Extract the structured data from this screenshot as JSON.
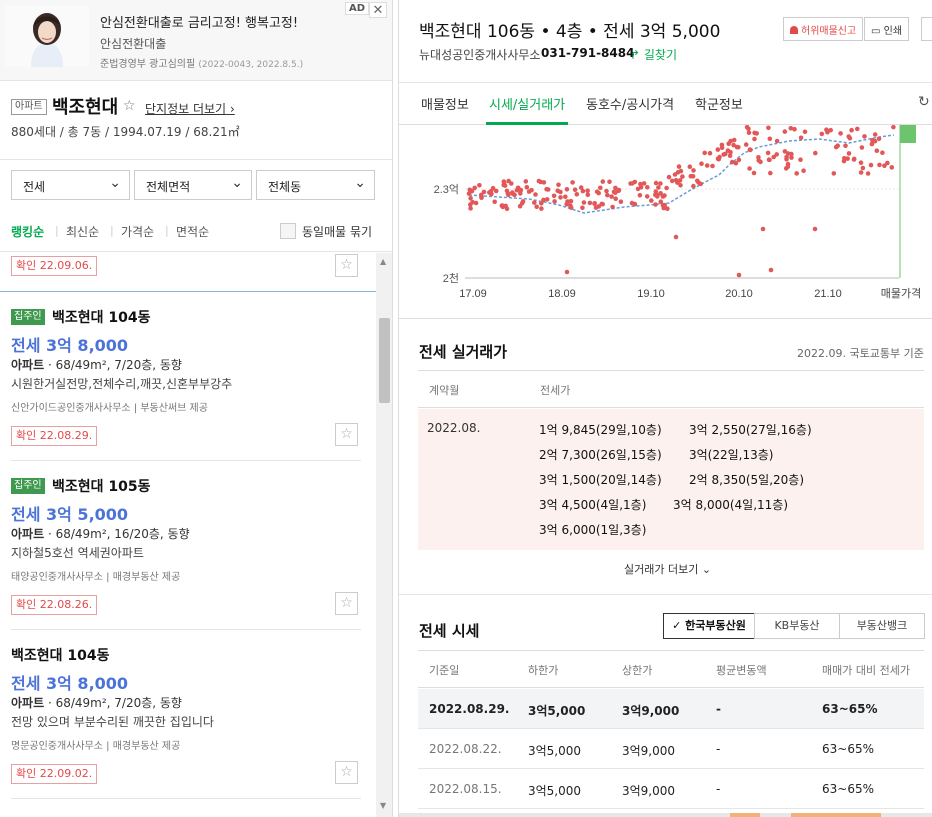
{
  "ad": {
    "title": "안심전환대출로 금리고정! 행복고정!",
    "subtitle": "안심전환대출",
    "fine_main": "준법경영부 광고심의필",
    "fine_code": "(2022-0043, 2022.8.5.)",
    "badge": "AD",
    "close": "✕"
  },
  "complex": {
    "type_tag": "아파트",
    "name": "백조현대",
    "star": "☆",
    "more_link": "단지정보 더보기",
    "info": "880세대 / 총 7동 / 1994.07.19 / 68.21㎡"
  },
  "filters": {
    "trade_type": "전세",
    "area": "전체면적",
    "building": "전체동"
  },
  "sorts": [
    {
      "label": "랭킹순",
      "active": true
    },
    {
      "label": "최신순",
      "active": false
    },
    {
      "label": "가격순",
      "active": false
    },
    {
      "label": "면적순",
      "active": false
    }
  ],
  "same_listing_label": "동일매물 묶기",
  "listings": {
    "top_confirm": "확인 22.09.06.",
    "items": [
      {
        "owner_tag": "집주인",
        "name": "백조현대 104동",
        "price": "전세 3억 8,000",
        "spec_type": "아파트",
        "spec": " · 68/49m², 7/20층, 동향",
        "desc": "시원한거실전망,전체수리,깨끗,신혼부부강추",
        "agent": "신안가이드공인중개사사무소",
        "provider": "부동산써브 제공",
        "confirm": "확인 22.08.29."
      },
      {
        "owner_tag": "집주인",
        "name": "백조현대 105동",
        "price": "전세 3억 5,000",
        "spec_type": "아파트",
        "spec": " · 68/49m², 16/20층, 동향",
        "desc": "지하철5호선 역세권아파트",
        "agent": "태양공인중개사사무소",
        "provider": "매경부동산 제공",
        "confirm": "확인 22.08.26."
      },
      {
        "owner_tag": "",
        "name": "백조현대 104동",
        "price": "전세 3억 8,000",
        "spec_type": "아파트",
        "spec": " · 68/49m², 7/20층, 동향",
        "desc": "전망 있으며 부분수리된 깨끗한 집입니다",
        "agent": "명문공인중개사사무소",
        "provider": "매경부동산 제공",
        "confirm": "확인 22.09.02."
      }
    ]
  },
  "detail": {
    "title": "백조현대 106동 • 4층 • 전세 3억 5,000",
    "agent": "뉴대성공인중개사사무소",
    "phone": "031-791-8484",
    "route": "↱ 길찾기",
    "report": "허위매물신고",
    "print": "인쇄",
    "tabs": [
      "매물정보",
      "시세/실거래가",
      "동호수/공시가격",
      "학군정보"
    ],
    "active_tab": 1
  },
  "chart_data": {
    "type": "scatter",
    "x_ticks": [
      "17.09",
      "18.09",
      "19.10",
      "20.10",
      "21.10",
      "매물가격"
    ],
    "y_ticks": [
      "2.3억",
      "2천"
    ],
    "point_color": "#e25858",
    "line_color": "#6a9ad8",
    "bar_color": "#6cc56c"
  },
  "trades": {
    "title": "전세 실거래가",
    "note": "2022.09. 국토교통부 기준",
    "col_month": "계약월",
    "col_price": "전세가",
    "month": "2022.08.",
    "lines": [
      [
        "1억 9,845(29일,10층)",
        "3억 2,550(27일,16층)"
      ],
      [
        "2억 7,300(26일,15층)",
        "3억(22일,13층)"
      ],
      [
        "3억 1,500(20일,14층)",
        "2억 8,350(5일,20층)"
      ],
      [
        "3억 4,500(4일,1층)",
        "3억 8,000(4일,11층)"
      ],
      [
        "3억 6,000(1일,3층)"
      ]
    ],
    "more": "실거래가 더보기"
  },
  "market": {
    "title": "전세 시세",
    "sources": [
      {
        "label": "✓ 한국부동산원",
        "active": true
      },
      {
        "label": "KB부동산",
        "active": false
      },
      {
        "label": "부동산뱅크",
        "active": false
      }
    ],
    "headers": [
      "기준일",
      "하한가",
      "상한가",
      "평균변동액",
      "매매가 대비 전세가"
    ],
    "rows": [
      [
        "2022.08.29.",
        "3억5,000",
        "3억9,000",
        "-",
        "63~65%"
      ],
      [
        "2022.08.22.",
        "3억5,000",
        "3억9,000",
        "-",
        "63~65%"
      ],
      [
        "2022.08.15.",
        "3억5,000",
        "3억9,000",
        "-",
        "63~65%"
      ]
    ]
  }
}
